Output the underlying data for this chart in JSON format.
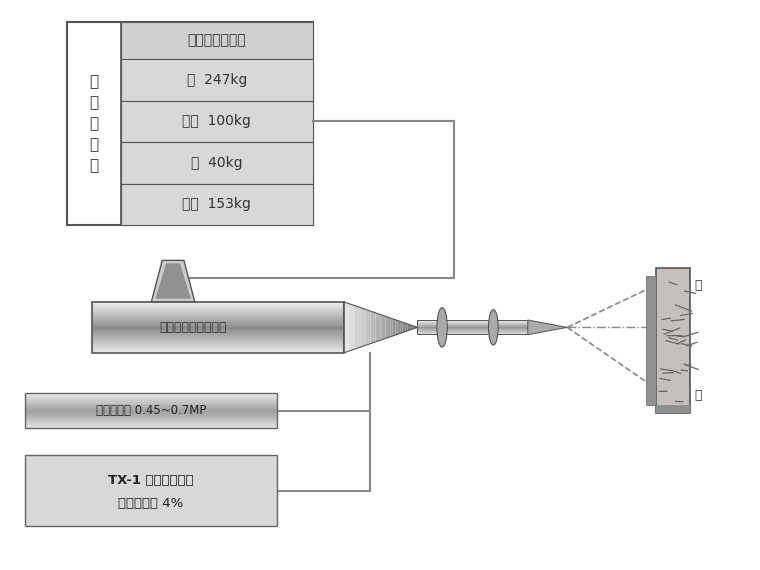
{
  "bg": "#ffffff",
  "table_left_text": "混\n凝\n土\n拌\n合",
  "header_text": "可参考的配合比",
  "rows": [
    "砂  247kg",
    "水泥  100kg",
    "水  40kg",
    "石子  153kg"
  ],
  "machine_label": "湿噴式混凝土噴射机",
  "wind_text": "风压控制在 0.45~0.7MP",
  "acc_line1": "TX-1 型液体速凝剤",
  "acc_line2": "水泥用量的 4%",
  "wall_top": "岩",
  "wall_bot": "面",
  "cell_bg": "#d8d8d8",
  "header_bg": "#d0d0d0",
  "line_color": "#888888",
  "border_color": "#555555"
}
